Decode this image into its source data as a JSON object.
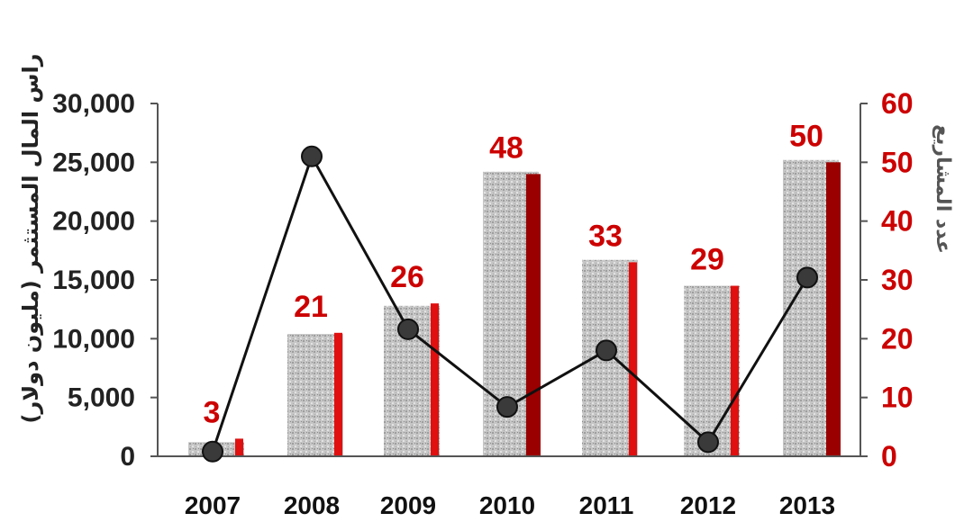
{
  "chart_data": {
    "type": "bar",
    "categories": [
      "2007",
      "2008",
      "2009",
      "2010",
      "2011",
      "2012",
      "2013"
    ],
    "y_left": {
      "label": "راس المال المستثمر (مليون دولار)",
      "ticks": [
        "30,000",
        "25,000",
        "20,000",
        "15,000",
        "10,000",
        "5,000",
        "0"
      ],
      "range": [
        0,
        30000
      ]
    },
    "y_right": {
      "label": "عدد المشاريع",
      "ticks": [
        "60",
        "50",
        "40",
        "30",
        "20",
        "10",
        "0"
      ],
      "range": [
        0,
        60
      ]
    },
    "series": [
      {
        "type": "bar",
        "axis": "left",
        "color": "#c4c4c4",
        "values": [
          1200,
          10400,
          12800,
          24200,
          16700,
          14500,
          25200
        ]
      },
      {
        "type": "bar",
        "axis": "right",
        "color": "#e01010",
        "dark_color": "#9a0000",
        "values": [
          3,
          21,
          26,
          48,
          33,
          29,
          50
        ],
        "labels": [
          "3",
          "21",
          "26",
          "48",
          "33",
          "29",
          "50"
        ]
      },
      {
        "type": "line",
        "axis": "left",
        "color": "#111111",
        "values": [
          400,
          25500,
          10800,
          4200,
          9000,
          1200,
          15200
        ]
      }
    ],
    "grid": false,
    "legend": "none"
  }
}
